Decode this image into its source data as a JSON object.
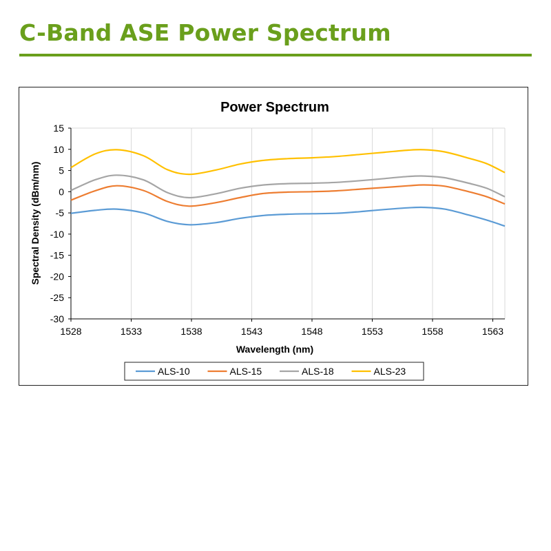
{
  "page": {
    "heading": "C-Band ASE Power Spectrum",
    "accent_color": "#6a9f1c"
  },
  "chart_data": {
    "type": "line",
    "title": "Power Spectrum",
    "xlabel": "Wavelength (nm)",
    "ylabel": "Spectral Density (dBm/nm)",
    "xlim": [
      1528,
      1564
    ],
    "ylim": [
      -30,
      15
    ],
    "x_ticks": [
      1528,
      1533,
      1538,
      1543,
      1548,
      1553,
      1558,
      1563
    ],
    "y_ticks": [
      -30,
      -25,
      -20,
      -15,
      -10,
      -5,
      0,
      5,
      10,
      15
    ],
    "grid": "vertical",
    "legend_position": "bottom",
    "x": [
      1528,
      1530,
      1531.8,
      1534,
      1536,
      1537.8,
      1540,
      1542,
      1544,
      1546,
      1548,
      1550,
      1552,
      1554,
      1556,
      1557.3,
      1559,
      1561,
      1562.5,
      1564
    ],
    "series": [
      {
        "name": "ALS-10",
        "color": "#5b9bd5",
        "values": [
          -5.1,
          -4.4,
          -4.1,
          -5.0,
          -7.0,
          -7.8,
          -7.3,
          -6.3,
          -5.6,
          -5.3,
          -5.2,
          -5.1,
          -4.7,
          -4.2,
          -3.8,
          -3.7,
          -4.1,
          -5.5,
          -6.7,
          -8.1
        ]
      },
      {
        "name": "ALS-15",
        "color": "#ed7d31",
        "values": [
          -2.0,
          0.2,
          1.4,
          0.3,
          -2.3,
          -3.4,
          -2.6,
          -1.4,
          -0.4,
          -0.1,
          0.0,
          0.2,
          0.6,
          1.0,
          1.4,
          1.6,
          1.3,
          0.0,
          -1.2,
          -2.9
        ]
      },
      {
        "name": "ALS-18",
        "color": "#a5a5a5",
        "values": [
          0.3,
          2.8,
          3.9,
          2.8,
          -0.2,
          -1.4,
          -0.5,
          0.8,
          1.6,
          1.9,
          2.0,
          2.2,
          2.6,
          3.1,
          3.6,
          3.7,
          3.3,
          2.0,
          0.8,
          -1.2
        ]
      },
      {
        "name": "ALS-23",
        "color": "#ffc000",
        "values": [
          5.7,
          8.9,
          9.9,
          8.5,
          5.2,
          4.1,
          5.1,
          6.5,
          7.4,
          7.8,
          8.0,
          8.3,
          8.8,
          9.3,
          9.8,
          9.9,
          9.4,
          7.9,
          6.6,
          4.5
        ]
      }
    ]
  }
}
